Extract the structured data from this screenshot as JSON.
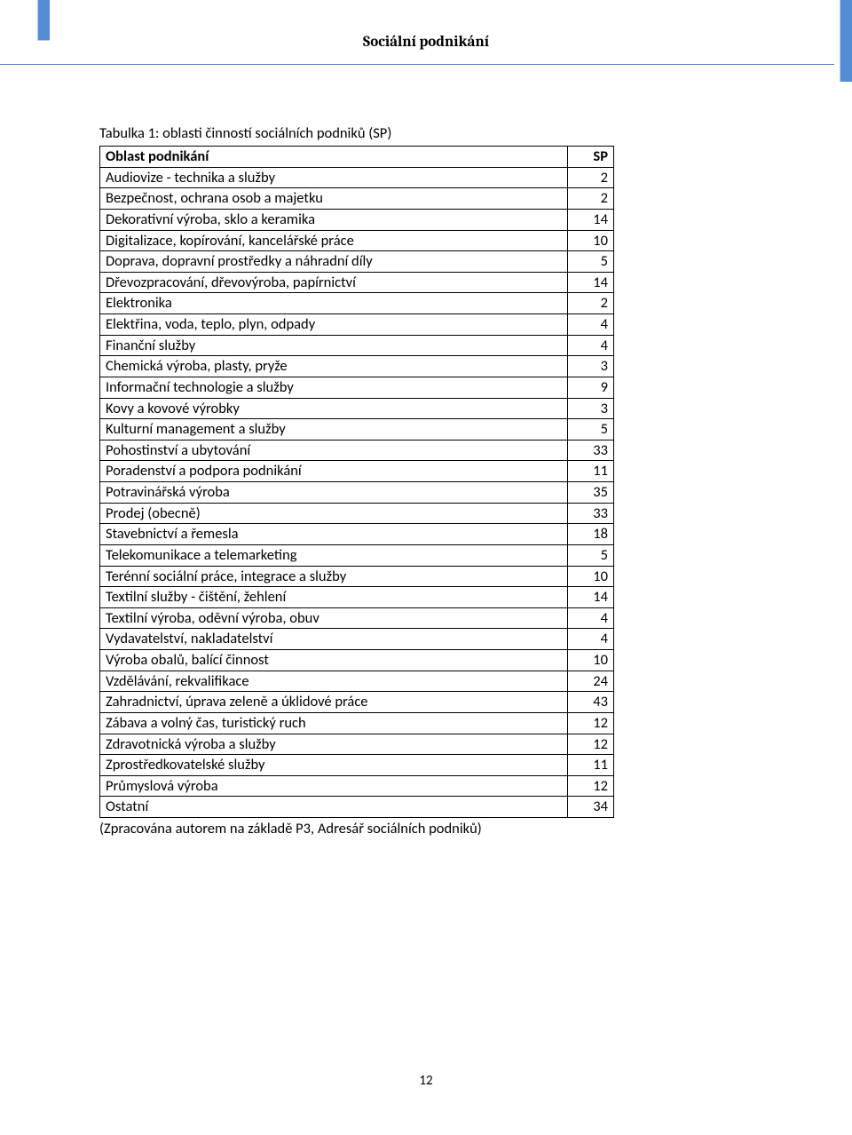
{
  "header": {
    "title": "Sociální podnikání",
    "tab_color": "#548dd4",
    "rule_color": "#4f81bd"
  },
  "caption": "Tabulka 1: oblasti činností sociálních podniků (SP)",
  "table": {
    "header": {
      "col1": "Oblast podnikání",
      "col2": "SP"
    },
    "rows": [
      {
        "label": "Audiovize - technika a služby",
        "value": "2"
      },
      {
        "label": "Bezpečnost, ochrana osob a majetku",
        "value": "2"
      },
      {
        "label": "Dekorativní výroba, sklo a keramika",
        "value": "14"
      },
      {
        "label": "Digitalizace, kopírování, kancelářské práce",
        "value": "10"
      },
      {
        "label": "Doprava, dopravní prostředky a náhradní díly",
        "value": "5"
      },
      {
        "label": "Dřevozpracování, dřevovýroba, papírnictví",
        "value": "14"
      },
      {
        "label": "Elektronika",
        "value": "2"
      },
      {
        "label": "Elektřina, voda, teplo, plyn, odpady",
        "value": "4"
      },
      {
        "label": "Finanční služby",
        "value": "4"
      },
      {
        "label": "Chemická výroba, plasty, pryže",
        "value": "3"
      },
      {
        "label": "Informační technologie a služby",
        "value": "9"
      },
      {
        "label": "Kovy a kovové výrobky",
        "value": "3"
      },
      {
        "label": "Kulturní management a služby",
        "value": "5"
      },
      {
        "label": "Pohostinství a ubytování",
        "value": "33"
      },
      {
        "label": "Poradenství a podpora podnikání",
        "value": "11"
      },
      {
        "label": "Potravinářská výroba",
        "value": "35"
      },
      {
        "label": "Prodej (obecně)",
        "value": "33"
      },
      {
        "label": "Stavebnictví a řemesla",
        "value": "18"
      },
      {
        "label": "Telekomunikace a telemarketing",
        "value": "5"
      },
      {
        "label": "Terénní sociální práce, integrace a služby",
        "value": "10"
      },
      {
        "label": "Textilní služby - čištění, žehlení",
        "value": "14"
      },
      {
        "label": "Textilní výroba, oděvní výroba, obuv",
        "value": "4"
      },
      {
        "label": "Vydavatelství, nakladatelství",
        "value": "4"
      },
      {
        "label": "Výroba obalů, balící činnost",
        "value": "10"
      },
      {
        "label": "Vzdělávání, rekvalifikace",
        "value": "24"
      },
      {
        "label": "Zahradnictví, úprava zeleně a úklidové práce",
        "value": "43"
      },
      {
        "label": "Zábava a volný čas, turistický ruch",
        "value": "12"
      },
      {
        "label": "Zdravotnická výroba a služby",
        "value": "12"
      },
      {
        "label": "Zprostředkovatelské služby",
        "value": "11"
      },
      {
        "label": "Průmyslová výroba",
        "value": "12"
      },
      {
        "label": "Ostatní",
        "value": "34"
      }
    ],
    "border_color": "#000000",
    "font_size": 16.5
  },
  "source_note": "(Zpracována autorem na základě P3, Adresář sociálních podniků)",
  "page_number": "12"
}
